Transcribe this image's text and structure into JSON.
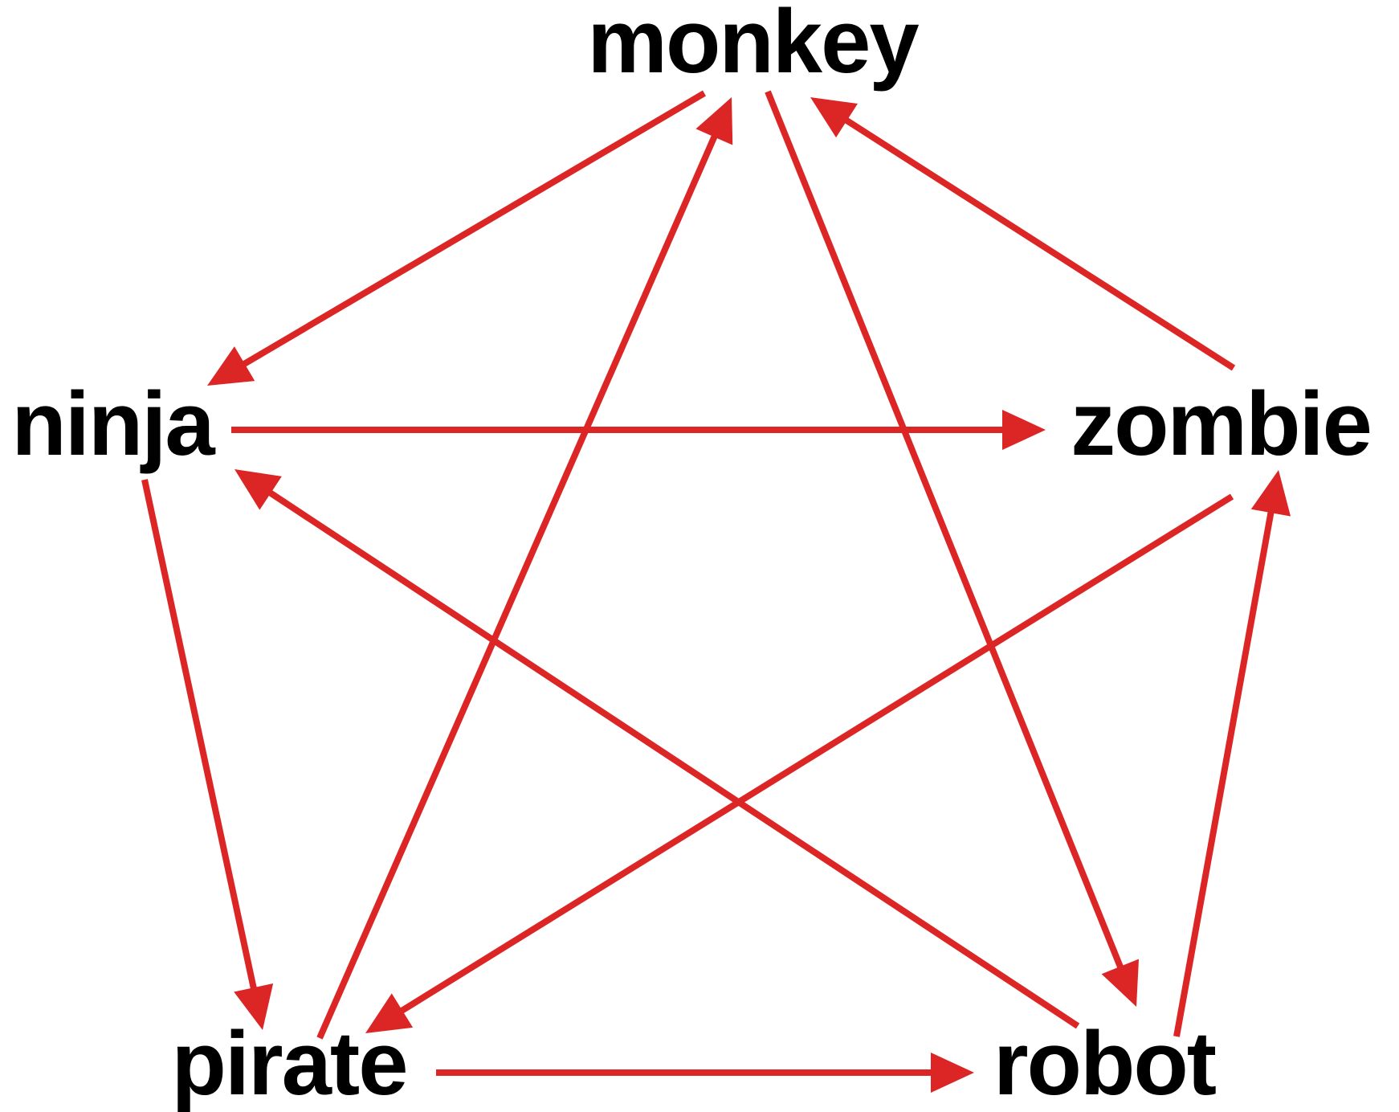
{
  "colors": {
    "arrow": "#dc2626",
    "text": "#000000",
    "background": "#ffffff"
  },
  "nodes": [
    {
      "id": "monkey",
      "label": "monkey"
    },
    {
      "id": "ninja",
      "label": "ninja"
    },
    {
      "id": "zombie",
      "label": "zombie"
    },
    {
      "id": "pirate",
      "label": "pirate"
    },
    {
      "id": "robot",
      "label": "robot"
    }
  ],
  "edges": [
    {
      "from": "monkey",
      "to": "ninja"
    },
    {
      "from": "monkey",
      "to": "robot"
    },
    {
      "from": "ninja",
      "to": "zombie"
    },
    {
      "from": "ninja",
      "to": "pirate"
    },
    {
      "from": "zombie",
      "to": "monkey"
    },
    {
      "from": "zombie",
      "to": "pirate"
    },
    {
      "from": "pirate",
      "to": "monkey"
    },
    {
      "from": "pirate",
      "to": "robot"
    },
    {
      "from": "robot",
      "to": "ninja"
    },
    {
      "from": "robot",
      "to": "zombie"
    }
  ]
}
